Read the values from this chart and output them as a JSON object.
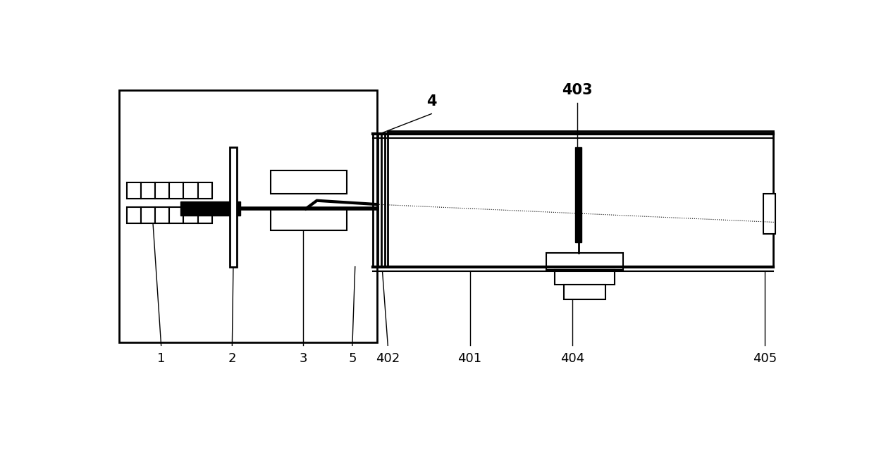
{
  "bg_color": "#ffffff",
  "fig_width": 12.4,
  "fig_height": 6.53,
  "dpi": 100
}
